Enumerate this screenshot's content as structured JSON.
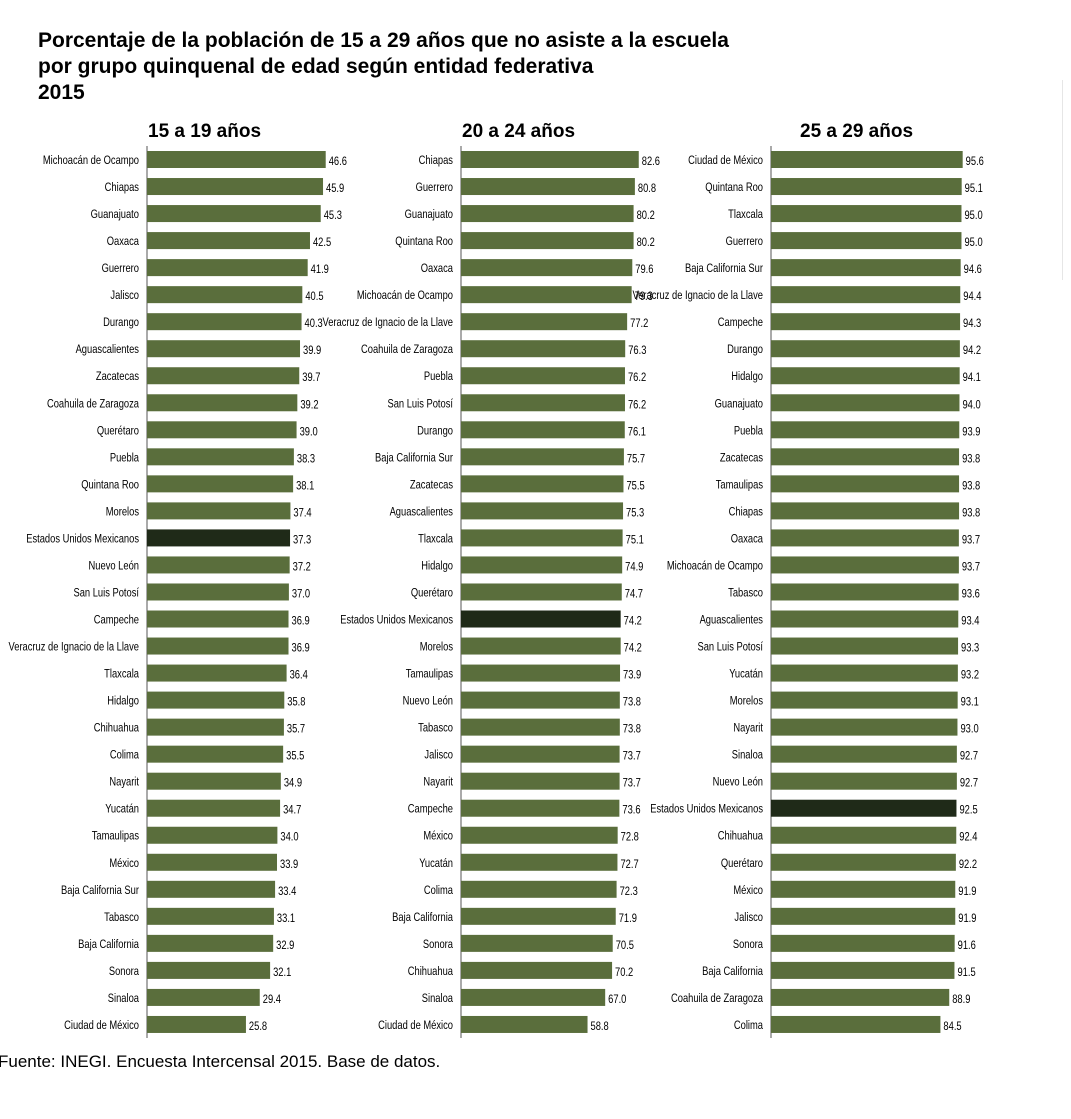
{
  "title_lines": [
    "Porcentaje de la población de 15 a 29 años que no asiste a la escuela",
    "por grupo quinquenal de edad según entidad federativa",
    "2015"
  ],
  "source": "Fuente: INEGI. Encuesta Intercensal 2015. Base de datos.",
  "colors": {
    "bar": "#5a6e3c",
    "highlight": "#1f2a18",
    "axis": "#555555",
    "text": "#000000"
  },
  "highlight_label": "Estados Unidos Mexicanos",
  "chart_data": [
    {
      "type": "bar",
      "orientation": "horizontal",
      "title": "15 a 19 años",
      "categories": [
        "Michoacán de Ocampo",
        "Chiapas",
        "Guanajuato",
        "Oaxaca",
        "Guerrero",
        "Jalisco",
        "Durango",
        "Aguascalientes",
        "Zacatecas",
        "Coahuila de Zaragoza",
        "Querétaro",
        "Puebla",
        "Quintana Roo",
        "Morelos",
        "Estados Unidos Mexicanos",
        "Nuevo León",
        "San Luis Potosí",
        "Campeche",
        "Veracruz de Ignacio de la Llave",
        "Tlaxcala",
        "Hidalgo",
        "Chihuahua",
        "Colima",
        "Nayarit",
        "Yucatán",
        "Tamaulipas",
        "México",
        "Baja California Sur",
        "Tabasco",
        "Baja California",
        "Sonora",
        "Sinaloa",
        "Ciudad de México"
      ],
      "values": [
        46.6,
        45.9,
        45.3,
        42.5,
        41.9,
        40.5,
        40.3,
        39.9,
        39.7,
        39.2,
        39.0,
        38.3,
        38.1,
        37.4,
        37.3,
        37.2,
        37.0,
        36.9,
        36.9,
        36.4,
        35.8,
        35.7,
        35.5,
        34.9,
        34.7,
        34.0,
        33.9,
        33.4,
        33.1,
        32.9,
        32.1,
        29.4,
        25.8
      ],
      "value_labels": [
        "46.6",
        "45.9",
        "45.3",
        "42.5",
        "41.9",
        "40.5",
        "40.3",
        "39.9",
        "39.7",
        "39.2",
        "39.0",
        "38.3",
        "38.1",
        "37.4",
        "37.3",
        "37.2",
        "37.0",
        "36.9",
        "36.9",
        "36.4",
        "35.8",
        "35.7",
        "35.5",
        "34.9",
        "34.7",
        "34.0",
        "33.9",
        "33.4",
        "33.1",
        "32.9",
        "32.1",
        "29.4",
        "25.8"
      ]
    },
    {
      "type": "bar",
      "orientation": "horizontal",
      "title": "20 a 24 años",
      "categories": [
        "Chiapas",
        "Guerrero",
        "Guanajuato",
        "Quintana Roo",
        "Oaxaca",
        "Michoacán de Ocampo",
        "Veracruz de Ignacio de la Llave",
        "Coahuila de Zaragoza",
        "Puebla",
        "San Luis Potosí",
        "Durango",
        "Baja California Sur",
        "Zacatecas",
        "Aguascalientes",
        "Tlaxcala",
        "Hidalgo",
        "Querétaro",
        "Estados Unidos Mexicanos",
        "Morelos",
        "Tamaulipas",
        "Nuevo León",
        "Tabasco",
        "Jalisco",
        "Nayarit",
        "Campeche",
        "México",
        "Yucatán",
        "Colima",
        "Baja California",
        "Sonora",
        "Chihuahua",
        "Sinaloa",
        "Ciudad de México"
      ],
      "values": [
        82.6,
        80.8,
        80.2,
        80.2,
        79.6,
        79.3,
        77.2,
        76.3,
        76.2,
        76.2,
        76.1,
        75.7,
        75.5,
        75.3,
        75.1,
        74.9,
        74.7,
        74.2,
        74.2,
        73.9,
        73.8,
        73.8,
        73.7,
        73.7,
        73.6,
        72.8,
        72.7,
        72.3,
        71.9,
        70.5,
        70.2,
        67.0,
        58.8
      ],
      "value_labels": [
        "82.6",
        "80.8",
        "80.2",
        "80.2",
        "79.6",
        "79.3",
        "77.2",
        "76.3",
        "76.2",
        "76.2",
        "76.1",
        "75.7",
        "75.5",
        "75.3",
        "75.1",
        "74.9",
        "74.7",
        "74.2",
        "74.2",
        "73.9",
        "73.8",
        "73.8",
        "73.7",
        "73.7",
        "73.6",
        "72.8",
        "72.7",
        "72.3",
        "71.9",
        "70.5",
        "70.2",
        "67.0",
        "58.8"
      ]
    },
    {
      "type": "bar",
      "orientation": "horizontal",
      "title": "25 a 29 años",
      "categories": [
        "Ciudad de México",
        "Quintana Roo",
        "Tlaxcala",
        "Guerrero",
        "Baja California Sur",
        "Veracruz de Ignacio de la Llave",
        "Campeche",
        "Durango",
        "Hidalgo",
        "Guanajuato",
        "Puebla",
        "Zacatecas",
        "Tamaulipas",
        "Chiapas",
        "Oaxaca",
        "Michoacán de Ocampo",
        "Tabasco",
        "Aguascalientes",
        "San Luis Potosí",
        "Yucatán",
        "Morelos",
        "Nayarit",
        "Sinaloa",
        "Nuevo León",
        "Estados Unidos Mexicanos",
        "Chihuahua",
        "Querétaro",
        "México",
        "Jalisco",
        "Sonora",
        "Baja California",
        "Coahuila de Zaragoza",
        "Colima"
      ],
      "values": [
        95.6,
        95.1,
        95.0,
        95.0,
        94.6,
        94.4,
        94.3,
        94.2,
        94.1,
        94.0,
        93.9,
        93.8,
        93.8,
        93.8,
        93.7,
        93.7,
        93.6,
        93.4,
        93.3,
        93.2,
        93.1,
        93.0,
        92.7,
        92.7,
        92.5,
        92.4,
        92.2,
        91.9,
        91.9,
        91.6,
        91.5,
        88.9,
        84.5
      ],
      "value_labels": [
        "95.6",
        "95.1",
        "95.0",
        "95.0",
        "94.6",
        "94.4",
        "94.3",
        "94.2",
        "94.1",
        "94.0",
        "93.9",
        "93.8",
        "93.8",
        "93.8",
        "93.7",
        "93.7",
        "93.6",
        "93.4",
        "93.3",
        "93.2",
        "93.1",
        "93.0",
        "92.7",
        "92.7",
        "92.5",
        "92.4",
        "92.2",
        "91.9",
        "91.9",
        "91.6",
        "91.5",
        "88.9",
        "84.5"
      ]
    }
  ]
}
